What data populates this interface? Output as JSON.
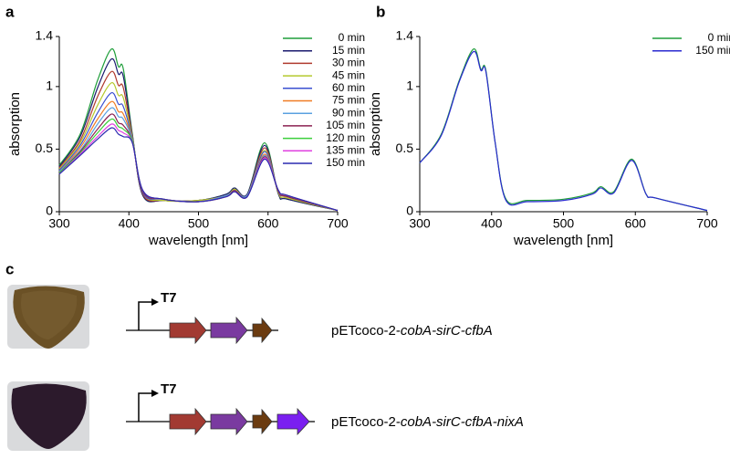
{
  "panel_labels": [
    "a",
    "b",
    "c"
  ],
  "chart_data": [
    {
      "type": "line",
      "xlabel": "wavelength [nm]",
      "ylabel": "absorption",
      "legend": "upper right",
      "xlim": [
        300,
        700
      ],
      "xticks": [
        300,
        400,
        500,
        600,
        700
      ],
      "ylim": [
        0,
        1.4
      ],
      "yticks": [
        0,
        0.5,
        1,
        1.4
      ],
      "x": [
        300,
        330,
        355,
        375,
        385,
        392,
        405,
        420,
        450,
        500,
        540,
        552,
        570,
        595,
        615,
        628,
        700
      ],
      "series": [
        {
          "name": "0 min",
          "color": "#1f9e3a",
          "values": [
            0.37,
            0.62,
            1.05,
            1.3,
            1.16,
            1.14,
            0.62,
            0.13,
            0.09,
            0.09,
            0.14,
            0.19,
            0.14,
            0.55,
            0.14,
            0.1,
            0.01
          ]
        },
        {
          "name": "15 min",
          "color": "#1a1a6e",
          "values": [
            0.36,
            0.6,
            0.99,
            1.22,
            1.1,
            1.08,
            0.61,
            0.13,
            0.09,
            0.09,
            0.14,
            0.19,
            0.14,
            0.53,
            0.14,
            0.1,
            0.01
          ]
        },
        {
          "name": "30 min",
          "color": "#b03a2e",
          "values": [
            0.35,
            0.57,
            0.92,
            1.12,
            1.01,
            0.99,
            0.6,
            0.14,
            0.09,
            0.09,
            0.13,
            0.18,
            0.13,
            0.51,
            0.15,
            0.11,
            0.01
          ]
        },
        {
          "name": "45 min",
          "color": "#b5c92e",
          "values": [
            0.34,
            0.55,
            0.85,
            1.03,
            0.93,
            0.91,
            0.59,
            0.15,
            0.09,
            0.09,
            0.13,
            0.18,
            0.13,
            0.49,
            0.15,
            0.11,
            0.01
          ]
        },
        {
          "name": "60 min",
          "color": "#3a4fd1",
          "values": [
            0.33,
            0.53,
            0.79,
            0.95,
            0.86,
            0.84,
            0.58,
            0.15,
            0.1,
            0.08,
            0.13,
            0.17,
            0.13,
            0.48,
            0.16,
            0.12,
            0.01
          ]
        },
        {
          "name": "75 min",
          "color": "#f07c24",
          "values": [
            0.32,
            0.51,
            0.74,
            0.88,
            0.8,
            0.78,
            0.57,
            0.16,
            0.1,
            0.08,
            0.13,
            0.17,
            0.13,
            0.46,
            0.16,
            0.12,
            0.01
          ]
        },
        {
          "name": "90 min",
          "color": "#5aa0e0",
          "values": [
            0.32,
            0.49,
            0.7,
            0.83,
            0.76,
            0.74,
            0.57,
            0.16,
            0.1,
            0.08,
            0.13,
            0.17,
            0.13,
            0.45,
            0.16,
            0.12,
            0.01
          ]
        },
        {
          "name": "105 min",
          "color": "#8b2252",
          "values": [
            0.31,
            0.48,
            0.66,
            0.78,
            0.71,
            0.69,
            0.56,
            0.16,
            0.1,
            0.08,
            0.12,
            0.17,
            0.12,
            0.44,
            0.16,
            0.12,
            0.01
          ]
        },
        {
          "name": "120 min",
          "color": "#3ccf3c",
          "values": [
            0.31,
            0.47,
            0.63,
            0.74,
            0.68,
            0.66,
            0.56,
            0.17,
            0.1,
            0.08,
            0.12,
            0.16,
            0.12,
            0.43,
            0.17,
            0.13,
            0.01
          ]
        },
        {
          "name": "135 min",
          "color": "#e040e0",
          "values": [
            0.3,
            0.46,
            0.6,
            0.7,
            0.65,
            0.63,
            0.55,
            0.17,
            0.1,
            0.08,
            0.12,
            0.16,
            0.12,
            0.43,
            0.17,
            0.13,
            0.01
          ]
        },
        {
          "name": "150 min",
          "color": "#2a2ab0",
          "values": [
            0.3,
            0.45,
            0.58,
            0.67,
            0.62,
            0.6,
            0.55,
            0.17,
            0.1,
            0.08,
            0.12,
            0.16,
            0.12,
            0.42,
            0.17,
            0.13,
            0.01
          ]
        }
      ]
    },
    {
      "type": "line",
      "xlabel": "wavelength [nm]",
      "ylabel": "absorption",
      "legend": "upper right",
      "xlim": [
        300,
        700
      ],
      "xticks": [
        300,
        400,
        500,
        600,
        700
      ],
      "ylim": [
        0,
        1.4
      ],
      "yticks": [
        0,
        0.5,
        1,
        1.4
      ],
      "x": [
        300,
        330,
        355,
        375,
        385,
        392,
        405,
        420,
        450,
        500,
        540,
        552,
        570,
        595,
        615,
        628,
        700
      ],
      "series": [
        {
          "name": "0 min",
          "color": "#1f9e3a",
          "values": [
            0.39,
            0.62,
            1.05,
            1.3,
            1.14,
            1.13,
            0.55,
            0.1,
            0.09,
            0.1,
            0.15,
            0.2,
            0.16,
            0.42,
            0.14,
            0.11,
            0.01
          ]
        },
        {
          "name": "150 min",
          "color": "#2a2ad0",
          "values": [
            0.39,
            0.61,
            1.04,
            1.28,
            1.13,
            1.12,
            0.55,
            0.09,
            0.08,
            0.09,
            0.14,
            0.19,
            0.15,
            0.41,
            0.14,
            0.11,
            0.01
          ]
        }
      ]
    }
  ],
  "constructs": [
    {
      "promoter": "T7",
      "plasmid": "pETcoco-2-",
      "genes": "cobA-sirC-cfbA"
    },
    {
      "promoter": "T7",
      "plasmid": "pETcoco-2-",
      "genes": "cobA-sirC-cfbA-nixA"
    }
  ]
}
